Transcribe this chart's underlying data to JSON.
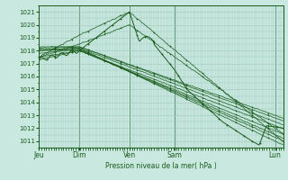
{
  "xlabel": "Pression niveau de la mer( hPa )",
  "ylim": [
    1010.5,
    1021.5
  ],
  "yticks": [
    1011,
    1012,
    1013,
    1014,
    1015,
    1016,
    1017,
    1018,
    1019,
    1020,
    1021
  ],
  "day_labels": [
    "Jeu",
    "Dim",
    "Ven",
    "Sam",
    "Lun"
  ],
  "day_positions": [
    0.0,
    0.165,
    0.37,
    0.555,
    0.965
  ],
  "bg_color": "#c8e8e0",
  "grid_color": "#a0c8bc",
  "line_color": "#1a5c1a",
  "xlim": [
    0.0,
    1.0
  ]
}
